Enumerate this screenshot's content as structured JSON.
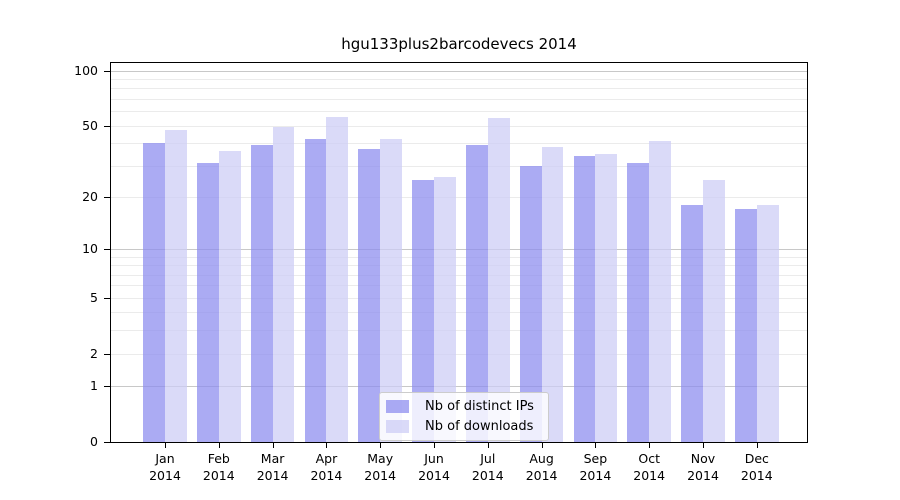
{
  "title": "hgu133plus2barcodevecs 2014",
  "chart_data": {
    "type": "bar",
    "title": "hgu133plus2barcodevecs 2014",
    "scale": "log1p",
    "ylim": [
      0,
      110
    ],
    "grid": true,
    "legend_position": "bottom-center",
    "yticks": [
      "0",
      "1",
      "2",
      "5",
      "10",
      "20",
      "50",
      "100"
    ],
    "ytick_values": [
      0,
      1,
      2,
      5,
      10,
      20,
      50,
      100
    ],
    "grid_major_values": [
      1,
      10,
      100
    ],
    "grid_minor_values": [
      2,
      3,
      4,
      5,
      6,
      7,
      8,
      9,
      20,
      30,
      40,
      50,
      60,
      70,
      80,
      90
    ],
    "categories": [
      {
        "month": "Jan",
        "year": "2014"
      },
      {
        "month": "Feb",
        "year": "2014"
      },
      {
        "month": "Mar",
        "year": "2014"
      },
      {
        "month": "Apr",
        "year": "2014"
      },
      {
        "month": "May",
        "year": "2014"
      },
      {
        "month": "Jun",
        "year": "2014"
      },
      {
        "month": "Jul",
        "year": "2014"
      },
      {
        "month": "Aug",
        "year": "2014"
      },
      {
        "month": "Sep",
        "year": "2014"
      },
      {
        "month": "Oct",
        "year": "2014"
      },
      {
        "month": "Nov",
        "year": "2014"
      },
      {
        "month": "Dec",
        "year": "2014"
      }
    ],
    "series": [
      {
        "name": "Nb of distinct IPs",
        "color": "rgba(138,138,238,0.72)",
        "values": [
          40,
          31,
          39,
          42,
          37,
          25,
          39,
          30,
          34,
          31,
          18,
          17
        ]
      },
      {
        "name": "Nb of downloads",
        "color": "rgba(204,204,245,0.72)",
        "values": [
          47,
          36,
          49,
          56,
          42,
          26,
          55,
          38,
          35,
          41,
          25,
          18
        ]
      }
    ]
  },
  "colors": {
    "grid_major": "#c8c8c8",
    "grid_minor": "#ebebeb",
    "axis": "#000000",
    "background": "#ffffff"
  }
}
